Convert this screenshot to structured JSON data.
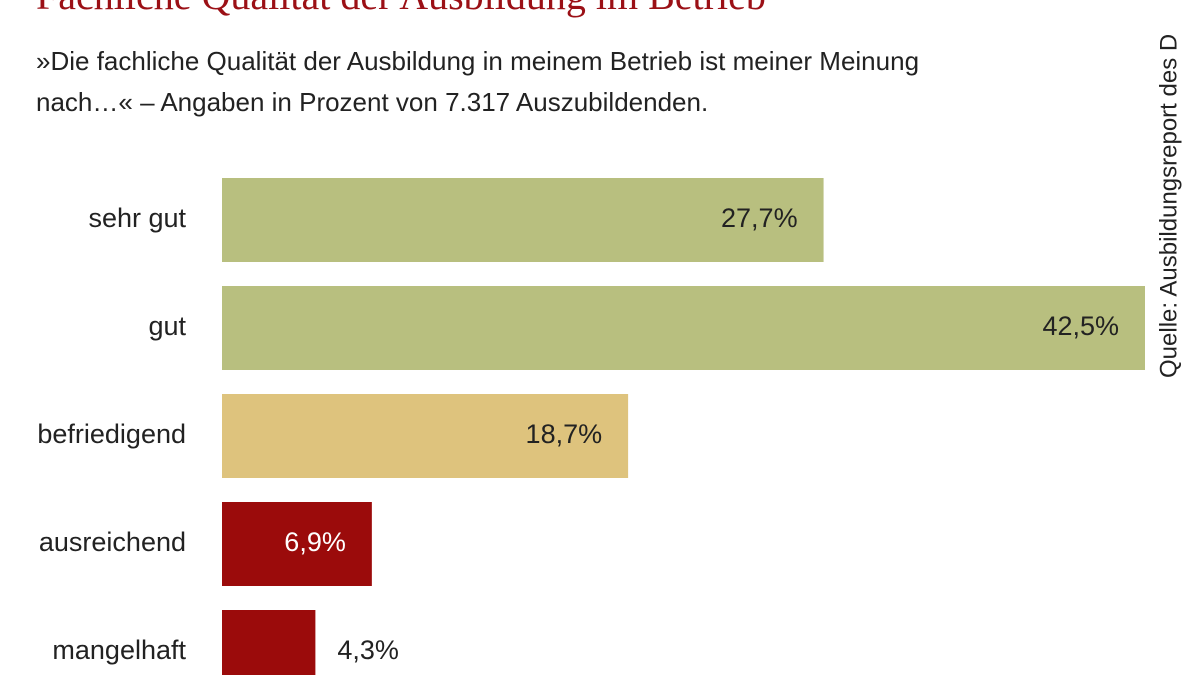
{
  "chart_data": {
    "type": "hbar",
    "title": "Fachliche Qualität der Ausbildung im Betrieb",
    "subtitle": [
      "»Die fachliche Qualität der Ausbildung in meinem Betrieb ist meiner Meinung",
      "nach…« – Angaben in Prozent von 7.317 Auszubildenden."
    ],
    "source": "Quelle: Ausbildungsreport des D",
    "categories": [
      "sehr gut",
      "gut",
      "befriedigend",
      "ausreichend",
      "mangelhaft"
    ],
    "values": [
      27.7,
      42.5,
      18.7,
      6.9,
      4.3
    ],
    "value_labels": [
      "27,7%",
      "42,5%",
      "18,7%",
      "6,9%",
      "4,3%"
    ],
    "colors": [
      "#b8bf7f",
      "#b8bf7f",
      "#dec37d",
      "#9b0b0b",
      "#9b0b0b"
    ]
  }
}
